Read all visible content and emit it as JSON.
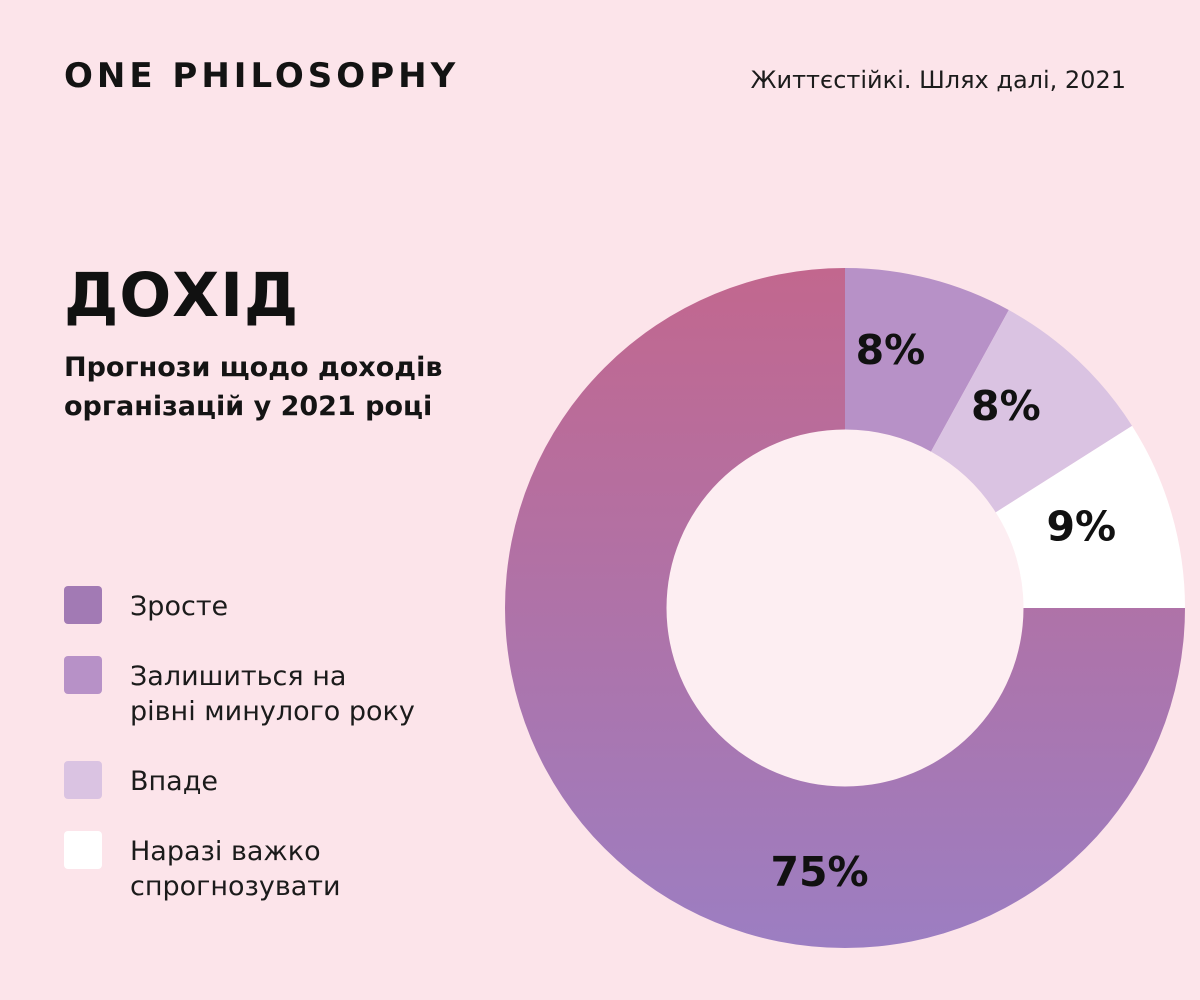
{
  "header": {
    "brand": "ONE PHILOSOPHY",
    "source": "Життєстійкі. Шлях далі, 2021"
  },
  "section": {
    "title": "ДОХІД",
    "subtitle_line1": "Прогнози щодо доходів",
    "subtitle_line2": "організацій у 2021 році"
  },
  "legend_items": [
    {
      "label": "Зросте",
      "color": "#a27ab4"
    },
    {
      "label": "Залишиться на рівні минулого року",
      "color": "#b791c7"
    },
    {
      "label": "Впаде",
      "color": "#dac3e2"
    },
    {
      "label": "Наразі важко спрогнозувати",
      "color": "#ffffff"
    }
  ],
  "chart_data": {
    "type": "pie",
    "subtype": "donut",
    "title": "Прогнози щодо доходів організацій у 2021 році",
    "units": "percent",
    "start_angle_deg": 0,
    "clockwise": true,
    "inner_radius_frac": 0.525,
    "hole_color": "#fdeef2",
    "legend_position": "left",
    "slices": [
      {
        "label": "Залишиться на рівні минулого року",
        "value": 8,
        "display": "8%",
        "color": "#b791c7",
        "label_angle_deg": 10,
        "label_radius_frac": 0.77
      },
      {
        "label": "Впаде",
        "value": 8,
        "display": "8%",
        "color": "#dac3e2",
        "label_angle_deg": 38.5,
        "label_radius_frac": 0.76
      },
      {
        "label": "Наразі важко спрогнозувати",
        "value": 9,
        "display": "9%",
        "color": "#ffffff",
        "label_angle_deg": 71,
        "label_radius_frac": 0.735
      },
      {
        "label": "Зросте",
        "value": 75,
        "display": "75%",
        "color": "#a27ab4",
        "gradient": [
          "#c2678e",
          "#9c7ec2"
        ],
        "label_angle_deg": 185.5,
        "label_radius_frac": 0.78
      }
    ]
  }
}
